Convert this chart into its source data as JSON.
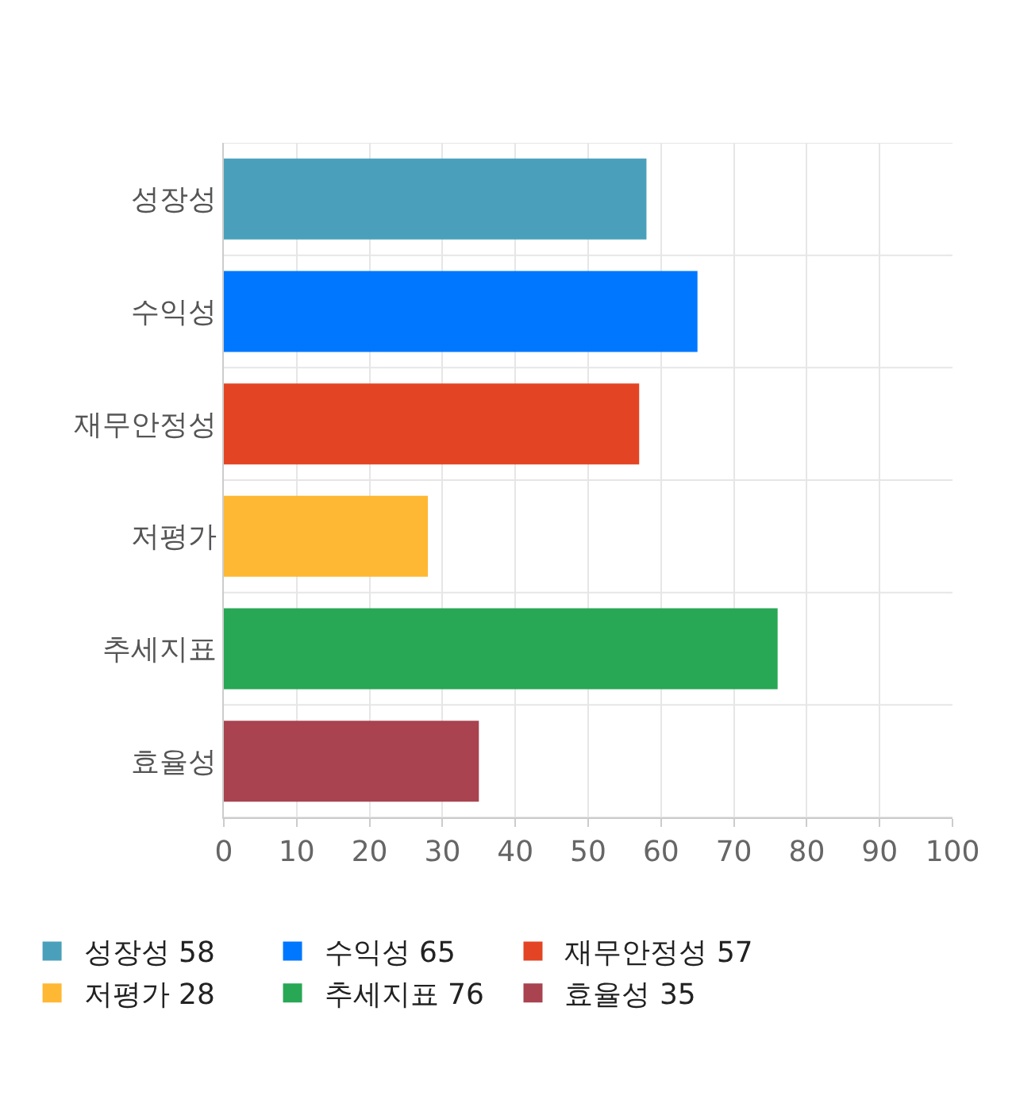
{
  "chart_data": {
    "type": "bar",
    "orientation": "horizontal",
    "categories": [
      "성장성",
      "수익성",
      "재무안정성",
      "저평가",
      "추세지표",
      "효율성"
    ],
    "series": [
      {
        "name": "성장성 58",
        "color": "#4aa0bb",
        "values": [
          58,
          null,
          null,
          null,
          null,
          null
        ]
      },
      {
        "name": "수익성 65",
        "color": "#0077ff",
        "values": [
          null,
          65,
          null,
          null,
          null,
          null
        ]
      },
      {
        "name": "재무안정성 57",
        "color": "#e34524",
        "values": [
          null,
          null,
          57,
          null,
          null,
          null
        ]
      },
      {
        "name": "저평가 28",
        "color": "#ffb833",
        "values": [
          null,
          null,
          null,
          28,
          null,
          null
        ]
      },
      {
        "name": "추세지표 76",
        "color": "#28a755",
        "values": [
          null,
          null,
          null,
          null,
          76,
          null
        ]
      },
      {
        "name": "효율성 35",
        "color": "#a8434f",
        "values": [
          null,
          null,
          null,
          null,
          null,
          35
        ]
      }
    ],
    "xlim": [
      0,
      100
    ],
    "xticks": [
      0,
      10,
      20,
      30,
      40,
      50,
      60,
      70,
      80,
      90,
      100
    ],
    "grid": true,
    "legend": "bottom"
  }
}
